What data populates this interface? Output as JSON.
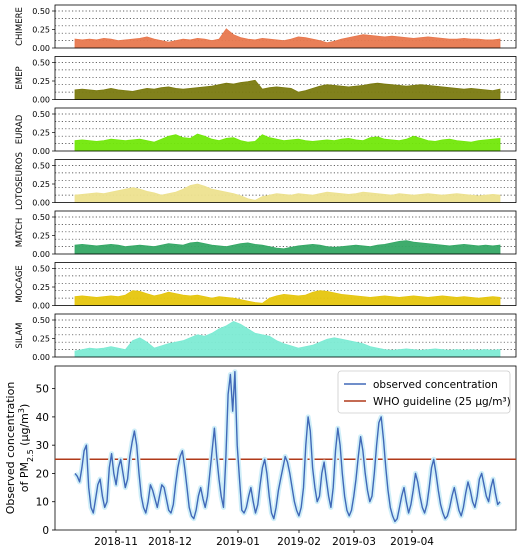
{
  "chart_data": {
    "type": "area",
    "panels": [
      {
        "name": "CHIMERE",
        "color": "#e8784e",
        "ylim": [
          0,
          0.5
        ],
        "yticks": [
          "0.00",
          "0.25",
          "0.50"
        ],
        "values": [
          0.12,
          0.11,
          0.12,
          0.11,
          0.13,
          0.12,
          0.1,
          0.11,
          0.12,
          0.13,
          0.15,
          0.12,
          0.1,
          0.08,
          0.1,
          0.12,
          0.11,
          0.13,
          0.12,
          0.1,
          0.12,
          0.26,
          0.18,
          0.14,
          0.12,
          0.11,
          0.13,
          0.12,
          0.11,
          0.1,
          0.12,
          0.15,
          0.14,
          0.12,
          0.1,
          0.07,
          0.09,
          0.12,
          0.14,
          0.16,
          0.18,
          0.17,
          0.16,
          0.15,
          0.16,
          0.15,
          0.14,
          0.13,
          0.14,
          0.15,
          0.14,
          0.13,
          0.12,
          0.12,
          0.13,
          0.12,
          0.12,
          0.11,
          0.11,
          0.12
        ]
      },
      {
        "name": "EMEP",
        "color": "#7a7a10",
        "ylim": [
          0,
          0.5
        ],
        "yticks": [
          "0.00",
          "0.25",
          "0.50"
        ],
        "values": [
          0.13,
          0.14,
          0.13,
          0.12,
          0.13,
          0.15,
          0.13,
          0.12,
          0.11,
          0.13,
          0.15,
          0.14,
          0.16,
          0.17,
          0.15,
          0.14,
          0.15,
          0.16,
          0.17,
          0.18,
          0.2,
          0.22,
          0.21,
          0.23,
          0.24,
          0.26,
          0.14,
          0.16,
          0.17,
          0.16,
          0.15,
          0.1,
          0.12,
          0.15,
          0.18,
          0.2,
          0.19,
          0.18,
          0.17,
          0.18,
          0.19,
          0.21,
          0.22,
          0.21,
          0.2,
          0.19,
          0.18,
          0.19,
          0.2,
          0.19,
          0.18,
          0.17,
          0.16,
          0.15,
          0.14,
          0.15,
          0.14,
          0.13,
          0.12,
          0.14
        ]
      },
      {
        "name": "EURAD",
        "color": "#72e80a",
        "ylim": [
          0,
          0.5
        ],
        "yticks": [
          "0.00",
          "0.25",
          "0.50"
        ],
        "values": [
          0.14,
          0.15,
          0.14,
          0.13,
          0.14,
          0.16,
          0.15,
          0.14,
          0.15,
          0.16,
          0.14,
          0.12,
          0.16,
          0.2,
          0.22,
          0.18,
          0.17,
          0.23,
          0.2,
          0.16,
          0.14,
          0.17,
          0.18,
          0.14,
          0.12,
          0.13,
          0.22,
          0.18,
          0.16,
          0.14,
          0.15,
          0.16,
          0.14,
          0.13,
          0.14,
          0.15,
          0.14,
          0.16,
          0.17,
          0.15,
          0.14,
          0.18,
          0.19,
          0.16,
          0.15,
          0.14,
          0.16,
          0.2,
          0.17,
          0.14,
          0.13,
          0.15,
          0.16,
          0.14,
          0.13,
          0.12,
          0.14,
          0.15,
          0.16,
          0.17
        ]
      },
      {
        "name": "LOTOSEUROS",
        "color": "#ede28f",
        "ylim": [
          0,
          0.5
        ],
        "yticks": [
          "0.00",
          "0.25",
          "0.50"
        ],
        "values": [
          0.1,
          0.11,
          0.12,
          0.13,
          0.12,
          0.14,
          0.16,
          0.18,
          0.2,
          0.18,
          0.15,
          0.13,
          0.1,
          0.12,
          0.14,
          0.18,
          0.23,
          0.25,
          0.22,
          0.18,
          0.16,
          0.14,
          0.12,
          0.09,
          0.05,
          0.03,
          0.08,
          0.1,
          0.12,
          0.11,
          0.1,
          0.12,
          0.11,
          0.1,
          0.12,
          0.14,
          0.13,
          0.12,
          0.11,
          0.12,
          0.14,
          0.13,
          0.12,
          0.11,
          0.1,
          0.12,
          0.11,
          0.1,
          0.11,
          0.12,
          0.11,
          0.1,
          0.11,
          0.12,
          0.11,
          0.1,
          0.09,
          0.1,
          0.11,
          0.1
        ]
      },
      {
        "name": "MATCH",
        "color": "#35a865",
        "ylim": [
          0,
          0.5
        ],
        "yticks": [
          "0.00",
          "0.25",
          "0.50"
        ],
        "values": [
          0.12,
          0.13,
          0.12,
          0.11,
          0.12,
          0.13,
          0.12,
          0.1,
          0.11,
          0.12,
          0.11,
          0.1,
          0.12,
          0.14,
          0.13,
          0.12,
          0.15,
          0.16,
          0.14,
          0.12,
          0.11,
          0.1,
          0.12,
          0.14,
          0.15,
          0.13,
          0.12,
          0.1,
          0.08,
          0.07,
          0.09,
          0.11,
          0.12,
          0.13,
          0.12,
          0.1,
          0.09,
          0.1,
          0.11,
          0.12,
          0.11,
          0.1,
          0.12,
          0.13,
          0.15,
          0.17,
          0.18,
          0.16,
          0.15,
          0.14,
          0.13,
          0.12,
          0.11,
          0.12,
          0.13,
          0.12,
          0.11,
          0.12,
          0.11,
          0.12
        ]
      },
      {
        "name": "MOCAGE",
        "color": "#e6c60e",
        "ylim": [
          0,
          0.5
        ],
        "yticks": [
          "0.00",
          "0.25",
          "0.50"
        ],
        "values": [
          0.12,
          0.13,
          0.12,
          0.11,
          0.12,
          0.13,
          0.12,
          0.14,
          0.2,
          0.19,
          0.16,
          0.13,
          0.15,
          0.18,
          0.16,
          0.14,
          0.13,
          0.14,
          0.12,
          0.1,
          0.12,
          0.11,
          0.1,
          0.08,
          0.06,
          0.04,
          0.03,
          0.1,
          0.13,
          0.15,
          0.14,
          0.13,
          0.14,
          0.18,
          0.2,
          0.19,
          0.17,
          0.15,
          0.14,
          0.13,
          0.12,
          0.11,
          0.12,
          0.13,
          0.12,
          0.11,
          0.12,
          0.13,
          0.12,
          0.11,
          0.12,
          0.13,
          0.12,
          0.11,
          0.12,
          0.11,
          0.1,
          0.11,
          0.12,
          0.11
        ]
      },
      {
        "name": "SILAM",
        "color": "#7debd4",
        "ylim": [
          0,
          0.5
        ],
        "yticks": [
          "0.00",
          "0.25",
          "0.50"
        ],
        "values": [
          0.08,
          0.1,
          0.12,
          0.11,
          0.12,
          0.14,
          0.12,
          0.1,
          0.22,
          0.26,
          0.2,
          0.12,
          0.15,
          0.18,
          0.2,
          0.22,
          0.26,
          0.3,
          0.28,
          0.32,
          0.38,
          0.42,
          0.48,
          0.44,
          0.38,
          0.32,
          0.3,
          0.28,
          0.22,
          0.18,
          0.15,
          0.12,
          0.14,
          0.16,
          0.2,
          0.24,
          0.26,
          0.24,
          0.22,
          0.2,
          0.18,
          0.14,
          0.12,
          0.1,
          0.09,
          0.1,
          0.11,
          0.1,
          0.09,
          0.1,
          0.11,
          0.1,
          0.09,
          0.1,
          0.09,
          0.1,
          0.09,
          0.1,
          0.09,
          0.1
        ]
      }
    ],
    "main": {
      "type": "line",
      "ylabel_line1": "Observed concentration",
      "ylabel_line2": "of PM",
      "ylabel_sub": "2.5",
      "ylabel_unit": "(μg/m",
      "ylabel_sup": "3",
      "ylabel_close": ")",
      "ylim": [
        0,
        58
      ],
      "yticks": [
        0,
        10,
        20,
        30,
        40,
        50
      ],
      "xticks": [
        "2018-11",
        "2018-12",
        "2019-01",
        "2019-02",
        "2019-03",
        "2019-04"
      ],
      "legend_position": "upper right",
      "series": [
        {
          "name": "observed concentration",
          "color": "#4169b8",
          "values": [
            20,
            19,
            17,
            22,
            28,
            30,
            15,
            8,
            6,
            11,
            16,
            18,
            12,
            8,
            10,
            22,
            27,
            20,
            16,
            22,
            25,
            20,
            15,
            18,
            26,
            31,
            35,
            30,
            20,
            12,
            8,
            6,
            10,
            16,
            14,
            11,
            8,
            12,
            16,
            15,
            11,
            7,
            6,
            9,
            16,
            22,
            26,
            28,
            22,
            15,
            8,
            5,
            4,
            7,
            12,
            15,
            11,
            8,
            12,
            20,
            28,
            36,
            26,
            18,
            12,
            8,
            25,
            48,
            55,
            42,
            56,
            30,
            18,
            7,
            6,
            8,
            12,
            15,
            10,
            6,
            9,
            16,
            22,
            25,
            20,
            12,
            6,
            4,
            8,
            14,
            18,
            22,
            26,
            24,
            20,
            15,
            10,
            7,
            5,
            8,
            15,
            30,
            40,
            35,
            22,
            15,
            10,
            12,
            20,
            24,
            18,
            12,
            8,
            15,
            28,
            36,
            30,
            20,
            12,
            7,
            5,
            7,
            12,
            18,
            26,
            33,
            28,
            20,
            14,
            10,
            12,
            20,
            30,
            38,
            40,
            32,
            22,
            14,
            8,
            5,
            3,
            4,
            8,
            12,
            15,
            10,
            6,
            9,
            14,
            20,
            17,
            12,
            8,
            6,
            9,
            15,
            22,
            25,
            20,
            14,
            9,
            6,
            4,
            5,
            8,
            12,
            15,
            11,
            7,
            5,
            8,
            13,
            17,
            14,
            10,
            8,
            12,
            18,
            20,
            16,
            12,
            10,
            15,
            18,
            13,
            9,
            10
          ]
        },
        {
          "name": "WHO guideline (25 μg/m³)",
          "color": "#b03a1a",
          "values": [
            25,
            25
          ]
        }
      ]
    }
  }
}
